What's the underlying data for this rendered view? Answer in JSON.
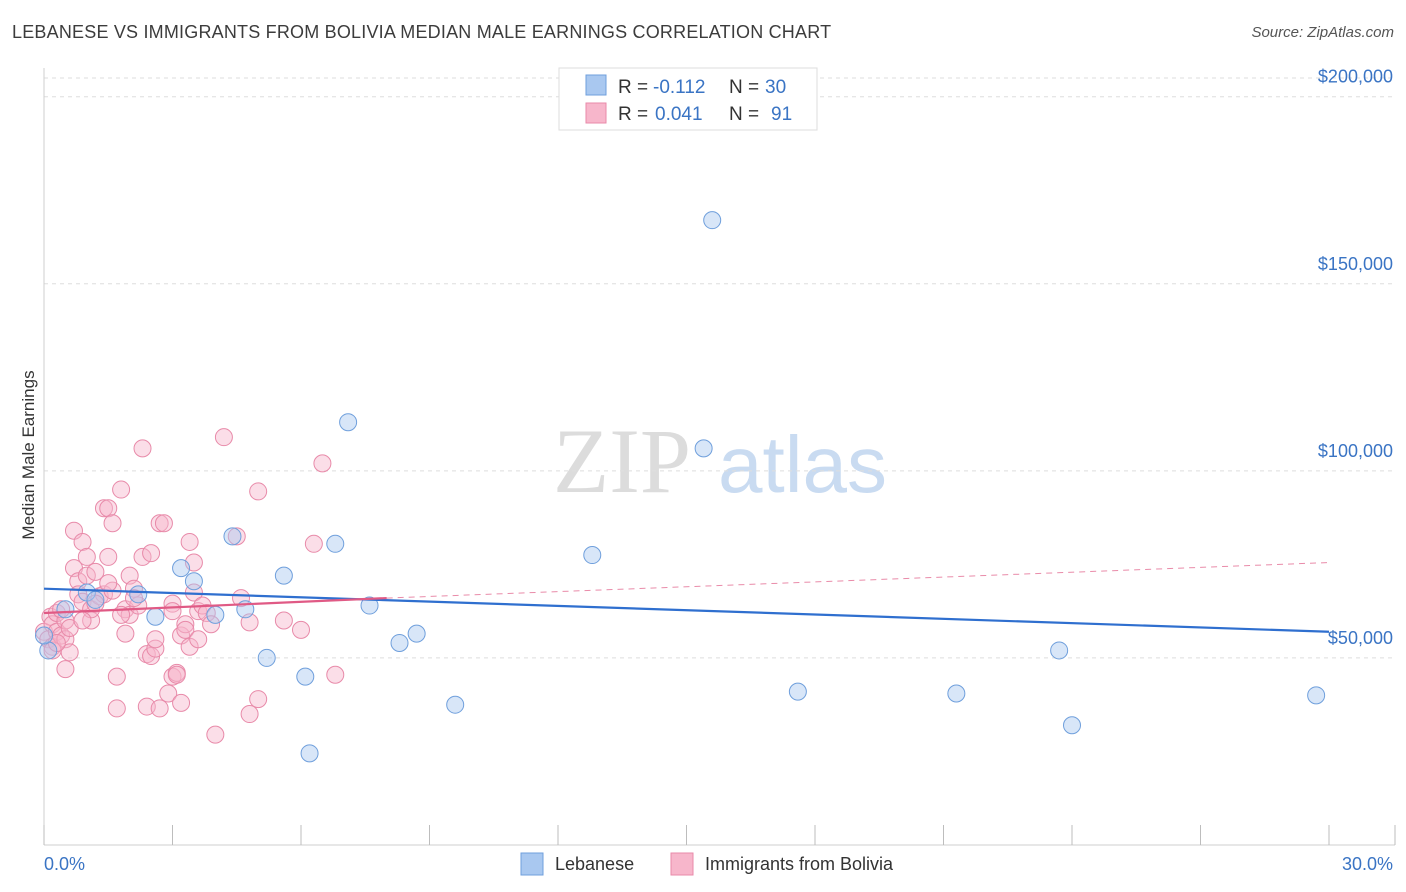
{
  "header": {
    "title": "LEBANESE VS IMMIGRANTS FROM BOLIVIA MEDIAN MALE EARNINGS CORRELATION CHART",
    "source": "Source: ZipAtlas.com"
  },
  "watermark": {
    "zip": "ZIP",
    "atlas": "atlas"
  },
  "legend": {
    "rows": [
      {
        "r_label": "R =",
        "r_value": "-0.112",
        "n_label": "N =",
        "n_value": "30"
      },
      {
        "r_label": "R =",
        "r_value": "0.041",
        "n_label": "N =",
        "n_value": "91"
      }
    ]
  },
  "chart_data": {
    "type": "scatter",
    "ylabel": "Median Male Earnings",
    "xlim": [
      0,
      30
    ],
    "ylim": [
      0,
      205000
    ],
    "x_tick_labels": [
      "0.0%",
      "30.0%"
    ],
    "y_ticks": [
      {
        "value": 50000,
        "label": "$50,000"
      },
      {
        "value": 100000,
        "label": "$100,000"
      },
      {
        "value": 150000,
        "label": "$150,000"
      },
      {
        "value": 200000,
        "label": "$200,000"
      }
    ],
    "colors": {
      "lebanese_fill": "#a9c8f0",
      "lebanese_stroke": "#6f9fdc",
      "lebanese_line": "#2f6fcf",
      "bolivia_fill": "#f7b6cb",
      "bolivia_stroke": "#e88aa9",
      "bolivia_line": "#e05a85"
    },
    "series": [
      {
        "name": "Lebanese",
        "trend": {
          "x": [
            0,
            30
          ],
          "y": [
            68500,
            57000
          ]
        },
        "points": [
          [
            0.1,
            52000
          ],
          [
            0.5,
            63000
          ],
          [
            1.0,
            67500
          ],
          [
            1.2,
            65500
          ],
          [
            2.2,
            67000
          ],
          [
            2.6,
            61000
          ],
          [
            3.2,
            74000
          ],
          [
            3.5,
            70500
          ],
          [
            4.0,
            61500
          ],
          [
            4.4,
            82500
          ],
          [
            4.7,
            63000
          ],
          [
            5.2,
            50000
          ],
          [
            5.6,
            72000
          ],
          [
            6.1,
            45000
          ],
          [
            6.2,
            24500
          ],
          [
            6.8,
            80500
          ],
          [
            7.1,
            113000
          ],
          [
            7.6,
            64000
          ],
          [
            8.3,
            54000
          ],
          [
            8.7,
            56500
          ],
          [
            9.6,
            37500
          ],
          [
            12.8,
            77500
          ],
          [
            15.4,
            106000
          ],
          [
            15.6,
            167000
          ],
          [
            17.6,
            41000
          ],
          [
            21.3,
            40500
          ],
          [
            23.7,
            52000
          ],
          [
            24.0,
            32000
          ],
          [
            29.7,
            40000
          ],
          [
            0.0,
            56000
          ]
        ]
      },
      {
        "name": "Immigrants from Bolivia",
        "trend": {
          "x": [
            0,
            8
          ],
          "y": [
            62000,
            66000
          ]
        },
        "trend_dashed": {
          "x": [
            8,
            30
          ],
          "y": [
            66000,
            75500
          ]
        },
        "points": [
          [
            0.0,
            57000
          ],
          [
            0.1,
            55000
          ],
          [
            0.15,
            61000
          ],
          [
            0.2,
            59000
          ],
          [
            0.2,
            53000
          ],
          [
            0.3,
            62000
          ],
          [
            0.3,
            57000
          ],
          [
            0.4,
            56000
          ],
          [
            0.5,
            60000
          ],
          [
            0.5,
            55000
          ],
          [
            0.5,
            47000
          ],
          [
            0.6,
            51500
          ],
          [
            0.7,
            84000
          ],
          [
            0.7,
            74000
          ],
          [
            0.8,
            70500
          ],
          [
            0.8,
            67000
          ],
          [
            0.9,
            81000
          ],
          [
            0.9,
            65000
          ],
          [
            1.0,
            77000
          ],
          [
            1.0,
            72000
          ],
          [
            1.1,
            60000
          ],
          [
            1.1,
            63000
          ],
          [
            1.2,
            73000
          ],
          [
            1.3,
            66500
          ],
          [
            1.4,
            67000
          ],
          [
            1.4,
            90000
          ],
          [
            1.5,
            90000
          ],
          [
            1.5,
            77000
          ],
          [
            1.6,
            86000
          ],
          [
            1.6,
            68000
          ],
          [
            1.7,
            45000
          ],
          [
            1.7,
            36500
          ],
          [
            1.8,
            95000
          ],
          [
            1.9,
            63000
          ],
          [
            1.9,
            56500
          ],
          [
            2.0,
            61500
          ],
          [
            2.0,
            72000
          ],
          [
            2.1,
            68500
          ],
          [
            2.2,
            64000
          ],
          [
            2.3,
            106000
          ],
          [
            2.3,
            77000
          ],
          [
            2.4,
            51000
          ],
          [
            2.4,
            37000
          ],
          [
            2.5,
            78000
          ],
          [
            2.5,
            50500
          ],
          [
            2.6,
            52500
          ],
          [
            2.7,
            86000
          ],
          [
            2.7,
            36500
          ],
          [
            2.8,
            86000
          ],
          [
            2.9,
            40500
          ],
          [
            3.0,
            45000
          ],
          [
            3.0,
            64500
          ],
          [
            3.1,
            46000
          ],
          [
            3.1,
            45500
          ],
          [
            3.2,
            56000
          ],
          [
            3.2,
            38000
          ],
          [
            3.3,
            59000
          ],
          [
            3.3,
            57500
          ],
          [
            3.4,
            53000
          ],
          [
            3.4,
            81000
          ],
          [
            3.5,
            67500
          ],
          [
            3.5,
            75500
          ],
          [
            3.6,
            62500
          ],
          [
            3.7,
            64000
          ],
          [
            3.8,
            62000
          ],
          [
            3.9,
            59000
          ],
          [
            4.0,
            29500
          ],
          [
            4.2,
            109000
          ],
          [
            4.5,
            82500
          ],
          [
            4.6,
            66000
          ],
          [
            4.8,
            35000
          ],
          [
            4.8,
            59500
          ],
          [
            5.0,
            94500
          ],
          [
            5.0,
            39000
          ],
          [
            5.6,
            60000
          ],
          [
            6.0,
            57500
          ],
          [
            6.3,
            80500
          ],
          [
            6.5,
            102000
          ],
          [
            6.8,
            45500
          ],
          [
            0.2,
            52000
          ],
          [
            0.4,
            63000
          ],
          [
            0.6,
            58000
          ],
          [
            0.9,
            60000
          ],
          [
            1.2,
            64500
          ],
          [
            1.5,
            70000
          ],
          [
            1.8,
            61500
          ],
          [
            2.1,
            66000
          ],
          [
            2.6,
            55000
          ],
          [
            3.0,
            62500
          ],
          [
            3.6,
            55000
          ],
          [
            0.3,
            54000
          ]
        ]
      }
    ]
  },
  "bottom_legend": {
    "items": [
      {
        "label": "Lebanese"
      },
      {
        "label": "Immigrants from Bolivia"
      }
    ]
  }
}
